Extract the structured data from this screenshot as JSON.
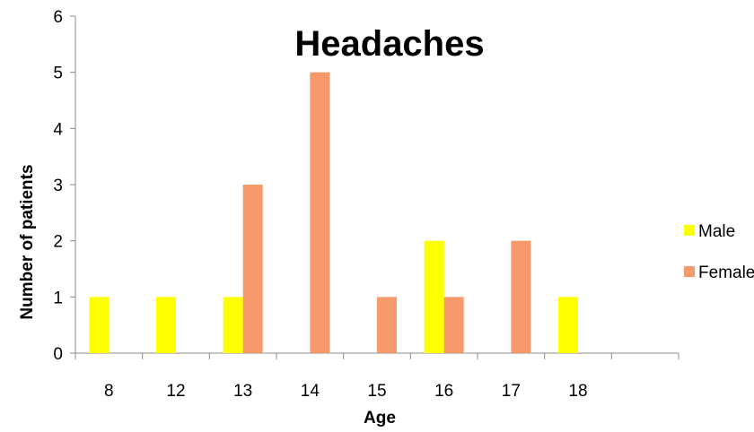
{
  "chart_data": {
    "type": "bar",
    "title": "Headaches",
    "xlabel": "Age",
    "ylabel": "Number of patients",
    "categories": [
      "8",
      "12",
      "13",
      "14",
      "15",
      "16",
      "17",
      "18",
      ""
    ],
    "series": [
      {
        "name": "Male",
        "color": "#ffff00",
        "values": [
          1,
          1,
          1,
          0,
          0,
          2,
          0,
          1,
          0
        ]
      },
      {
        "name": "Female",
        "color": "#f79a6b",
        "values": [
          0,
          0,
          3,
          5,
          1,
          1,
          2,
          0,
          0
        ]
      }
    ],
    "ylim": [
      0,
      6
    ],
    "yticks": [
      0,
      1,
      2,
      3,
      4,
      5,
      6
    ],
    "grid": false,
    "legend": "right"
  }
}
